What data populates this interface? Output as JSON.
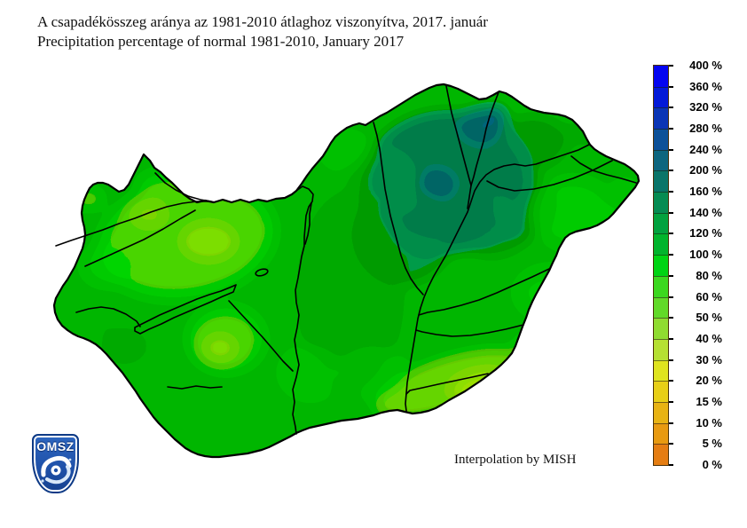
{
  "title": {
    "line1_hu": "A csapadékösszeg aránya az 1981-2010 átlaghoz viszonyítva, 2017. január",
    "line2_en": "Precipitation percentage of normal 1981-2010, January 2017"
  },
  "legend": {
    "unit": "%",
    "tick_labels": [
      "400 %",
      "360 %",
      "320 %",
      "280 %",
      "240 %",
      "200 %",
      "160 %",
      "140 %",
      "120 %",
      "100 %",
      "80 %",
      "60 %",
      "50 %",
      "40 %",
      "30 %",
      "20 %",
      "15 %",
      "10 %",
      "5 %",
      "0 %"
    ],
    "band_colors_top_to_bottom": [
      "#0505f0",
      "#041ad8",
      "#0b35b5",
      "#0d5198",
      "#0e667e",
      "#0a7569",
      "#068c52",
      "#03a23e",
      "#02b42c",
      "#00d413",
      "#3cd81e",
      "#62da28",
      "#90dc30",
      "#b6e032",
      "#e0e41e",
      "#e8cf16",
      "#e8b313",
      "#e89a10",
      "#e57d12"
    ]
  },
  "map": {
    "attribution": "Interpolation by MISH",
    "base_color": "#0ab828",
    "outline_color": "#000000"
  },
  "logo": {
    "text": "OMSZ"
  }
}
